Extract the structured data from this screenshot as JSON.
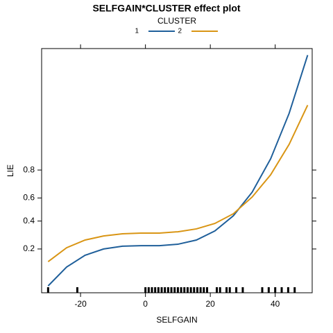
{
  "chart_data": {
    "type": "line",
    "title": "SELFGAIN*CLUSTER effect plot",
    "legend_title": "CLUSTER",
    "xlabel": "SELFGAIN",
    "ylabel": "LIE",
    "x": [
      -30,
      -24.3,
      -18.6,
      -12.9,
      -7.1,
      -1.4,
      4.3,
      10,
      15.7,
      21.4,
      27.1,
      32.9,
      38.6,
      44.3,
      50
    ],
    "series": [
      {
        "name": "1",
        "color": "#1f5f9a",
        "values": [
          0.064,
          0.117,
          0.167,
          0.2,
          0.216,
          0.219,
          0.219,
          0.228,
          0.255,
          0.32,
          0.445,
          0.648,
          0.856,
          0.967,
          0.9956
        ]
      },
      {
        "name": "2",
        "color": "#d99514",
        "values": [
          0.138,
          0.207,
          0.255,
          0.283,
          0.299,
          0.304,
          0.304,
          0.314,
          0.336,
          0.38,
          0.463,
          0.608,
          0.772,
          0.908,
          0.975
        ]
      }
    ],
    "rug": [
      -30,
      -21,
      0,
      1,
      2,
      3,
      4,
      5,
      6,
      7,
      8,
      9,
      10,
      11,
      12,
      13,
      14,
      15,
      16,
      17,
      18,
      19,
      22,
      23,
      25,
      26,
      28,
      30,
      36,
      38,
      40,
      42,
      44,
      46
    ],
    "xlim": [
      -32,
      51.4
    ],
    "xticks": [
      -20,
      0,
      20,
      40
    ],
    "ylim": [
      0.051,
      0.9965
    ],
    "yticks": [
      0.2,
      0.4,
      0.6,
      0.8
    ],
    "yscale": "logit",
    "grid": false
  }
}
